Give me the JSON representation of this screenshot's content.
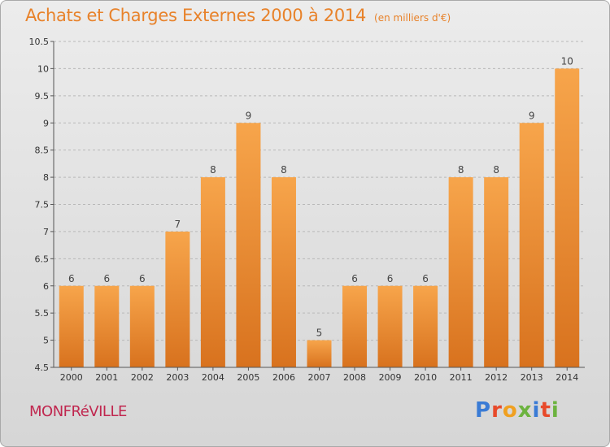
{
  "header": {
    "title": "Achats et Charges Externes 2000 à 2014",
    "unit": "(en milliers d'€)"
  },
  "footer": {
    "city": "MONFRéVILLE",
    "logo": {
      "letters": [
        "P",
        "r",
        "o",
        "x",
        "i",
        "t",
        "i"
      ],
      "colors": [
        "#3a7bd5",
        "#e84a2a",
        "#f0a020",
        "#6cb33f",
        "#3a7bd5",
        "#e84a2a",
        "#6cb33f"
      ]
    }
  },
  "colors": {
    "bar_top": "#f7a54b",
    "bar_bottom": "#d8721e",
    "grid": "#b8b8b8"
  },
  "chart_data": {
    "type": "bar",
    "categories": [
      "2000",
      "2001",
      "2002",
      "2003",
      "2004",
      "2005",
      "2006",
      "2007",
      "2008",
      "2009",
      "2010",
      "2011",
      "2012",
      "2013",
      "2014"
    ],
    "values": [
      6,
      6,
      6,
      7,
      8,
      9,
      8,
      5,
      6,
      6,
      6,
      8,
      8,
      9,
      10
    ],
    "data_labels": [
      "6",
      "6",
      "6",
      "7",
      "8",
      "9",
      "8",
      "5",
      "6",
      "6",
      "6",
      "8",
      "8",
      "9",
      "10"
    ],
    "ylim": [
      4.5,
      10.5
    ],
    "yticks": [
      4.5,
      5,
      5.5,
      6,
      6.5,
      7,
      7.5,
      8,
      8.5,
      9,
      9.5,
      10,
      10.5
    ],
    "ytick_labels": [
      "4.5",
      "5",
      "5.5",
      "6",
      "6.5",
      "7",
      "7.5",
      "8",
      "8.5",
      "9",
      "9.5",
      "10",
      "10.5"
    ],
    "grid": true
  }
}
